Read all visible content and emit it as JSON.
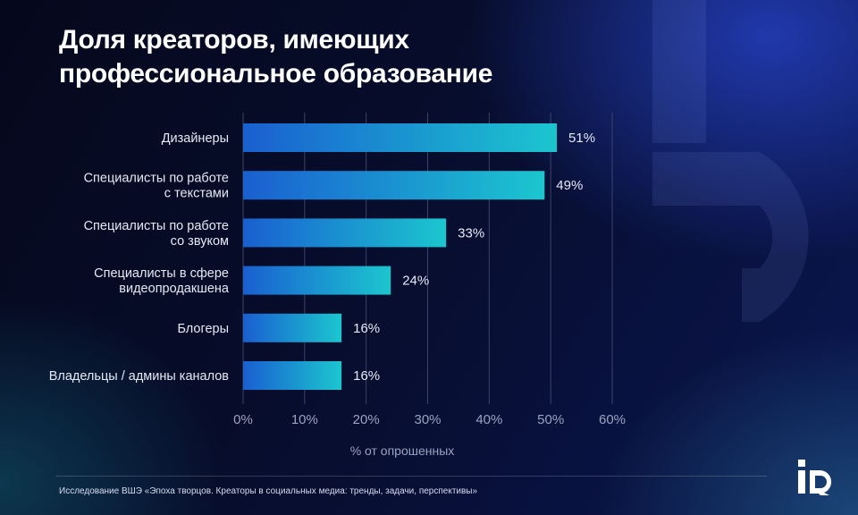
{
  "header": {
    "title_line1": "Доля креаторов, имеющих",
    "title_line2": "профессиональное образование"
  },
  "chart_data": {
    "type": "bar",
    "orientation": "horizontal",
    "categories": [
      [
        "Дизайнеры"
      ],
      [
        "Специалисты по работе",
        "с текстами"
      ],
      [
        "Специалисты по работе",
        "со звуком"
      ],
      [
        "Специалисты в сфере",
        "видеопродакшена"
      ],
      [
        "Блогеры"
      ],
      [
        "Владельцы / админы каналов"
      ]
    ],
    "values": [
      51,
      49,
      33,
      24,
      16,
      16
    ],
    "value_labels": [
      "51%",
      "49%",
      "33%",
      "24%",
      "16%",
      "16%"
    ],
    "xlabel": "% от опрошенных",
    "xlim": [
      0,
      60
    ],
    "xticks": [
      "0%",
      "10%",
      "20%",
      "30%",
      "40%",
      "50%",
      "60%"
    ],
    "grid": true,
    "colors": {
      "bar_start": "#1a5fd0",
      "bar_end": "#1bc6cf",
      "grid": "#3a4468",
      "label": "#e6e9f5",
      "axis_label": "#9aa3c0"
    }
  },
  "footer": {
    "source": "Исследование ВШЭ «Эпоха творцов. Креаторы в социальных медиа: тренды, задачи, перспективы»"
  },
  "logo": {
    "icon": "iq-logo-icon"
  }
}
